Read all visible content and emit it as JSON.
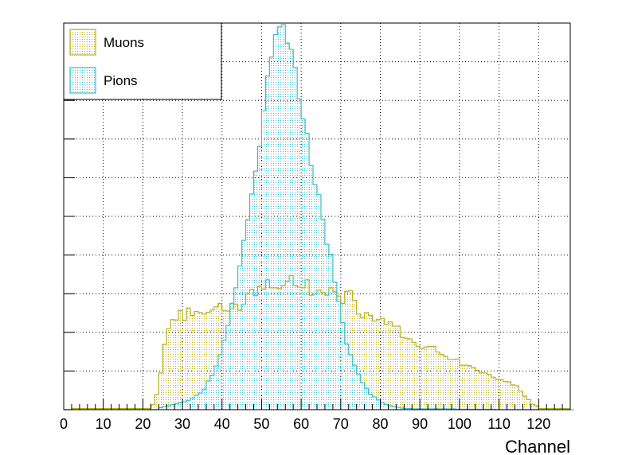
{
  "chart_data": {
    "type": "area",
    "xlabel": "Channel",
    "ylabel": "",
    "xlim": [
      0,
      128
    ],
    "ylim": [
      0,
      100
    ],
    "bin_width": 1,
    "x_tick_labels": [
      "0",
      "10",
      "20",
      "30",
      "40",
      "50",
      "60",
      "70",
      "80",
      "90",
      "100",
      "110",
      "120"
    ],
    "grid": true,
    "legend_position": "top-left",
    "series": [
      {
        "name": "Muons",
        "color": "#b8b01a",
        "fill": "dotted",
        "values": [
          0,
          0,
          0.3,
          0.3,
          0.3,
          0.3,
          0.3,
          0.3,
          0.3,
          0.3,
          0.3,
          0.3,
          0.3,
          0.3,
          0.3,
          0.3,
          0.3,
          0.3,
          0.3,
          0.3,
          0.3,
          0.3,
          1.3,
          3.9,
          9.5,
          16.9,
          21,
          23.3,
          23.2,
          25.7,
          23.1,
          26.3,
          24.4,
          25.4,
          25.1,
          24.7,
          25.2,
          25.8,
          26.6,
          27.5,
          25.7,
          25.5,
          26.1,
          27.3,
          25.7,
          27.3,
          30.1,
          31.1,
          29.5,
          31.9,
          31.2,
          33.6,
          31.5,
          31.5,
          31.3,
          32.1,
          33.2,
          34.7,
          32.1,
          31.7,
          31.5,
          33.6,
          29.6,
          29.9,
          30.9,
          30.3,
          29.6,
          31.5,
          30.5,
          29.4,
          27.5,
          30.6,
          30.8,
          28.3,
          24.7,
          23.8,
          25.1,
          24.4,
          22.9,
          23.3,
          23.6,
          22.1,
          22.7,
          21.6,
          21.6,
          18.7,
          18.5,
          18.3,
          17.4,
          16.4,
          15.8,
          16.2,
          16.4,
          16.4,
          14.9,
          14.3,
          13.8,
          13,
          13,
          13.1,
          11.5,
          11.5,
          11.4,
          10.9,
          10.2,
          9.5,
          9.5,
          9.1,
          8.4,
          7.9,
          7.8,
          7.3,
          7.2,
          6.4,
          6.2,
          4.8,
          3.5,
          2.6,
          1.4,
          1,
          0.3,
          0.3,
          0.3,
          0.3,
          0.3,
          0.3,
          0.3,
          0.3
        ]
      },
      {
        "name": "Pions",
        "color": "#3abfcc",
        "fill": "dotted",
        "values": [
          0,
          0,
          0,
          0,
          0,
          0,
          0,
          0,
          0,
          0,
          0,
          0,
          0,
          0,
          0,
          0,
          0,
          0,
          0,
          0,
          0,
          0,
          0,
          0,
          0.5,
          0.8,
          1,
          1.3,
          1.5,
          1.8,
          2,
          2.4,
          2.9,
          3.7,
          4.3,
          5.3,
          7.4,
          8.9,
          11.3,
          14.2,
          17.9,
          21.8,
          27.5,
          31.5,
          37.2,
          43.8,
          49.1,
          55.8,
          61.7,
          68.1,
          77.3,
          86.3,
          91.2,
          97,
          99,
          99.6,
          94.8,
          93.2,
          88.5,
          80.4,
          75.2,
          71.5,
          63.2,
          58.2,
          55.6,
          49.3,
          42.8,
          40.2,
          33,
          28,
          22.5,
          17,
          14.2,
          11.5,
          9.2,
          7,
          5.5,
          4,
          3.3,
          2.5,
          1.8,
          1.3,
          1,
          0.8,
          0.6,
          0.4,
          0.3,
          0.3,
          0.2,
          0.2,
          0.2,
          0.2,
          0.2,
          0.2,
          0.2,
          0.2,
          0.2,
          0.2,
          0.2,
          0.1,
          0.1,
          0.1,
          0.1,
          0.1,
          0.1,
          0.1,
          0.1,
          0.1,
          0.1,
          0,
          0,
          0,
          0,
          0,
          0,
          0,
          0,
          0,
          0,
          0,
          0,
          0,
          0,
          0,
          0,
          0,
          0,
          0,
          0
        ]
      }
    ]
  }
}
